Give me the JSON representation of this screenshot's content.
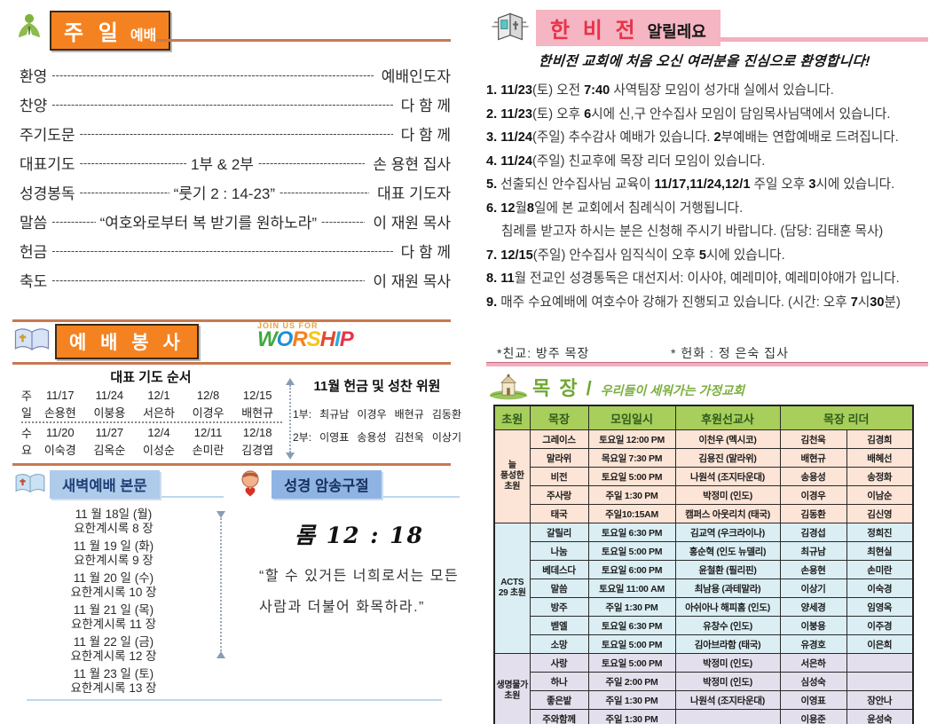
{
  "colors": {
    "accent_orange": "#F58220",
    "line_orange": "#C87950",
    "pink_box": "#F5B5C2",
    "pink_title": "#E8334A",
    "blue_box": "#AECBEA",
    "table_header_green": "#A8CE5B",
    "group1_bg": "#FCE4D6",
    "group2_bg": "#DAEEF3",
    "group3_bg": "#E4DFEC"
  },
  "icons": {
    "sunday": "praying-person-icon",
    "worship": "open-book-cross-icon",
    "announcements": "bulletin-book-icon",
    "dawn": "open-book-icon",
    "memory": "praying-child-icon",
    "mokjang": "church-icon"
  },
  "sunday_worship": {
    "title_main": "주 일",
    "title_sub": "예배",
    "items": [
      {
        "label": "환영",
        "center": "",
        "value": "예배인도자"
      },
      {
        "label": "찬양",
        "center": "",
        "value": "다 함 께"
      },
      {
        "label": "주기도문",
        "center": "",
        "value": "다 함 께"
      },
      {
        "label": "대표기도",
        "center": "1부 & 2부",
        "value": "손 용현 집사"
      },
      {
        "label": "성경봉독",
        "center": "“룻기 2 : 14-23”",
        "value": "대표 기도자"
      },
      {
        "label": "말씀",
        "center": "“여호와로부터 복 받기를 원하노라”",
        "value": "이 재원 목사"
      },
      {
        "label": "헌금",
        "center": "",
        "value": "다 함 께"
      },
      {
        "label": "축도",
        "center": "",
        "value": "이 재원 목사"
      }
    ]
  },
  "worship_service": {
    "title": "예 배 봉 사",
    "logo_small": "JOIN US FOR",
    "logo_letters": [
      "W",
      "O",
      "R",
      "S",
      "H",
      "I",
      "P"
    ],
    "logo_colors": [
      "#3FA93F",
      "#1E90D6",
      "#F58220",
      "#F5C518",
      "#E8452C",
      "#29ABE2",
      "#E8334A"
    ],
    "prayer_order": {
      "title": "대표 기도 순서",
      "row_labels": [
        "주",
        "일",
        "수",
        "요"
      ],
      "sunday_dates": [
        "11/17",
        "11/24",
        "12/1",
        "12/8",
        "12/15"
      ],
      "sunday_names": [
        "손용현",
        "이붕용",
        "서은하",
        "이경우",
        "배현규"
      ],
      "wednesday_dates": [
        "11/20",
        "11/27",
        "12/4",
        "12/11",
        "12/18"
      ],
      "wednesday_names": [
        "이숙경",
        "김옥순",
        "이성순",
        "손미란",
        "김경엽"
      ]
    },
    "committee": {
      "title": "11월 헌금 및 성찬 위원",
      "row1_label": "1부:",
      "row1_names": [
        "최규남",
        "이경우",
        "배현규",
        "김동환"
      ],
      "row2_label": "2부:",
      "row2_names": [
        "이영표",
        "송용성",
        "김천욱",
        "이상기"
      ]
    }
  },
  "dawn_worship": {
    "title": "새벽예배 본문",
    "entries": [
      {
        "date": "11 월 18일 (월)",
        "passage": "요한계시록 8 장"
      },
      {
        "date": "11 월 19 일 (화)",
        "passage": "요한계시록 9 장"
      },
      {
        "date": "11 월 20 일 (수)",
        "passage": "요한계시록 10 장"
      },
      {
        "date": "11 월 21 일 (목)",
        "passage": "요한계시록 11 장"
      },
      {
        "date": "11 월 22 일 (금)",
        "passage": "요한계시록 12 장"
      },
      {
        "date": "11 월 23 일 (토)",
        "passage": "요한계시록 13 장"
      }
    ]
  },
  "memory_verse": {
    "title": "성경 암송구절",
    "reference": "롬 12 : 18",
    "lines": [
      "“할 수 있거든 너희로서는 모든",
      "사람과 더불어 화목하라.”"
    ]
  },
  "announcements": {
    "title_main": "한 비 전",
    "title_sub": "알릴레요",
    "welcome": "한비전 교회에 처음 오신 여러분을 진심으로 환영합니다!",
    "items": [
      {
        "text": "1. 11/23(토) 오전 7:40 사역팀장 모임이 성가대 실에서 있습니다.",
        "indent": false
      },
      {
        "text": "2. 11/23(토) 오후 6시에 신,구 안수집사 모임이 담임목사님댁에서 있습니다.",
        "indent": false
      },
      {
        "text": "3. 11/24(주일) 추수감사 예배가 있습니다. 2부예배는 연합예배로 드려집니다.",
        "indent": false
      },
      {
        "text": "4. 11/24(주일) 친교후에 목장 리더 모임이 있습니다.",
        "indent": false
      },
      {
        "text": "5. 선출되신 안수집사님 교육이 11/17,11/24,12/1 주일 오후 3시에 있습니다.",
        "indent": false
      },
      {
        "text": "6. 12월8일에 본 교회에서 침례식이 거행됩니다.",
        "indent": false
      },
      {
        "text": "침례를 받고자 하시는 분은 신청해  주시기 바랍니다. (담당: 김태훈 목사)",
        "indent": true
      },
      {
        "text": "7. 12/15(주일) 안수집사 임직식이 오후 5시에 있습니다.",
        "indent": false
      },
      {
        "text": "8. 11월 전교인 성경통독은 대선지서: 이사야, 예레미야, 예레미야애가 입니다.",
        "indent": false
      },
      {
        "text": "9. 매주 수요예배에 여호수아 강해가 진행되고 있습니다. (시간: 오후 7시30분)",
        "indent": false
      }
    ],
    "fellowship": "*친교: 방주 목장",
    "flowers": "* 헌화 : 정 은숙 집사"
  },
  "mokjang": {
    "title": "목 장",
    "divider": "/",
    "subtitle": "우리들이 세워가는 가정교회",
    "headers": [
      "초원",
      "목장",
      "모임일시",
      "후원선교사",
      "목장 리더"
    ],
    "groups": [
      {
        "name": "늘\n풍성한\n초원",
        "color": "#FCE4D6",
        "rows": [
          [
            "그레이스",
            "토요일 12:00 PM",
            "이천우 (멕시코)",
            "김천욱",
            "김경희"
          ],
          [
            "말라위",
            "목요일 7:30 PM",
            "김용진 (말라위)",
            "배현규",
            "배혜선"
          ],
          [
            "비전",
            "토요일 5:00 PM",
            "나원석 (조지타운대)",
            "송용성",
            "송정화"
          ],
          [
            "주사랑",
            "주일 1:30 PM",
            "박정미 (인도)",
            "이경우",
            "이남순"
          ],
          [
            "태국",
            "주일10:15AM",
            "캠퍼스 아웃리치 (태국)",
            "김동환",
            "김신영"
          ]
        ]
      },
      {
        "name": "ACTS\n29 초원",
        "color": "#DAEEF3",
        "rows": [
          [
            "갈릴리",
            "토요일 6:30 PM",
            "김교역 (우크라이나)",
            "김경섭",
            "정희진"
          ],
          [
            "나눔",
            "토요일 5:00 PM",
            "홍순혁 (인도 뉴델리)",
            "최규남",
            "최현실"
          ],
          [
            "베데스다",
            "토요일 6:00 PM",
            "윤철환 (필리핀)",
            "손용현",
            "손미란"
          ],
          [
            "말씀",
            "토요일 11:00 AM",
            "최남용 (과테말라)",
            "이상기",
            "이숙경"
          ],
          [
            "방주",
            "주일 1:30 PM",
            "아쉬아나 해피홈 (인도)",
            "양세경",
            "임영옥"
          ],
          [
            "벧엘",
            "토요일 6:30 PM",
            "유창수 (인도)",
            "이붕용",
            "이주경"
          ],
          [
            "소망",
            "토요일 5:00 PM",
            "김아브라함 (태국)",
            "유경호",
            "이은희"
          ]
        ]
      },
      {
        "name": "생명물가\n초원",
        "color": "#E4DFEC",
        "rows": [
          [
            "사랑",
            "토요일 5:00 PM",
            "박정미 (인도)",
            "서은하",
            ""
          ],
          [
            "하나",
            "주일 2:00 PM",
            "박정미 (인도)",
            "심성숙",
            ""
          ],
          [
            "좋은밭",
            "주일 1:30 PM",
            "나원석 (조지타운대)",
            "이영표",
            "장안나"
          ],
          [
            "주와함께",
            "주일 1:30 PM",
            "",
            "이용준",
            "윤성숙"
          ]
        ]
      }
    ]
  }
}
